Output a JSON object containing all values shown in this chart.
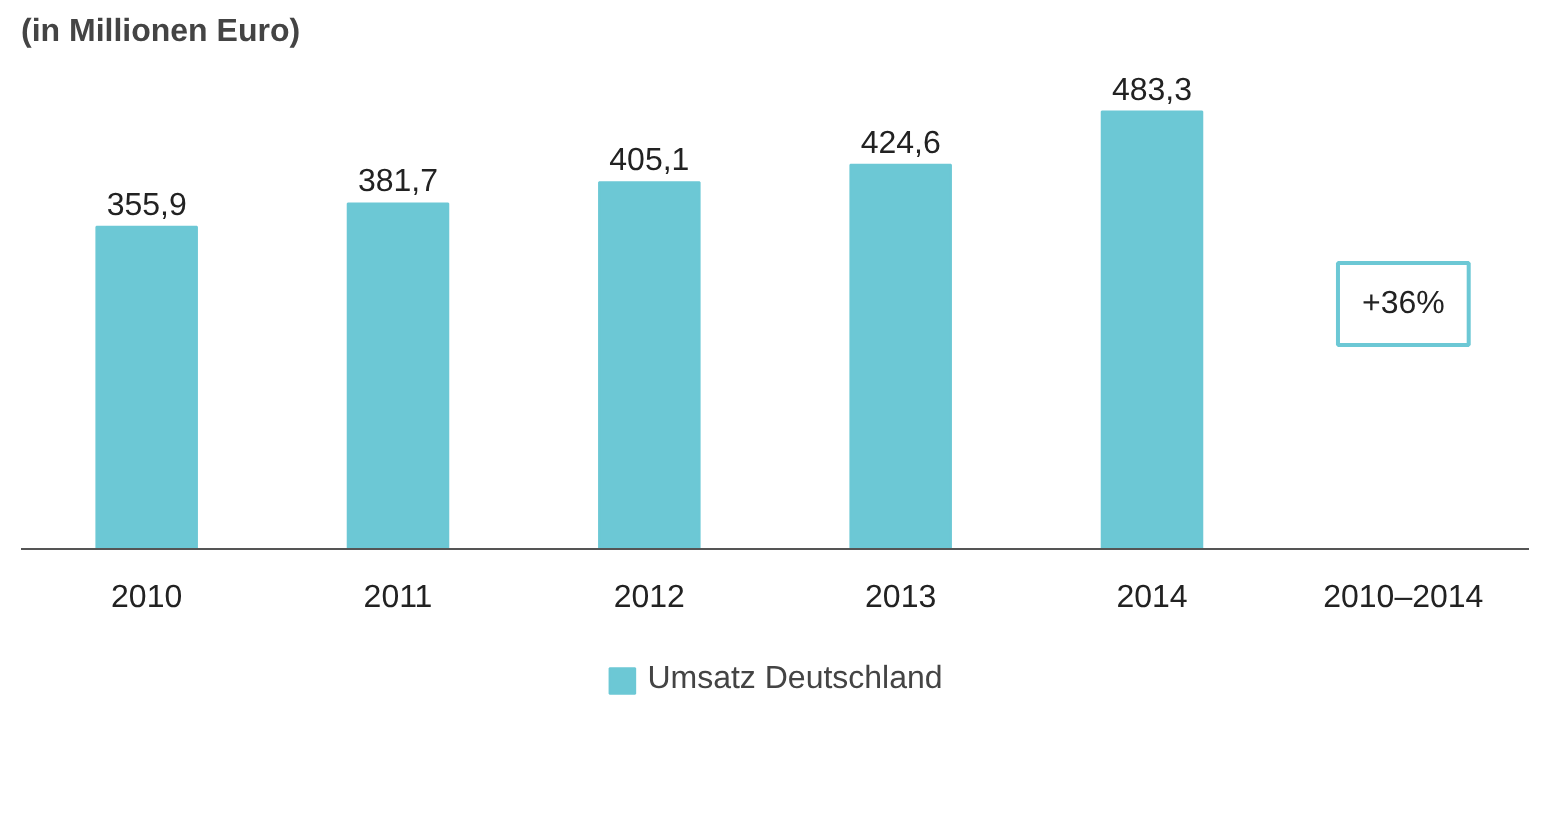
{
  "chart_data": {
    "type": "bar",
    "title": "(in Millionen Euro)",
    "categories": [
      "2010",
      "2011",
      "2012",
      "2013",
      "2014",
      "2010–2014"
    ],
    "series": [
      {
        "name": "Umsatz Deutschland",
        "color": "#6cc8d5",
        "values": [
          355.9,
          381.7,
          405.1,
          424.6,
          483.3,
          null
        ],
        "value_labels": [
          "355,9",
          "381,7",
          "405,1",
          "424,6",
          "483,3",
          null
        ]
      }
    ],
    "tick_labels": "x",
    "grid": false,
    "legend": "bottom",
    "annotations": [
      "+36%"
    ]
  }
}
